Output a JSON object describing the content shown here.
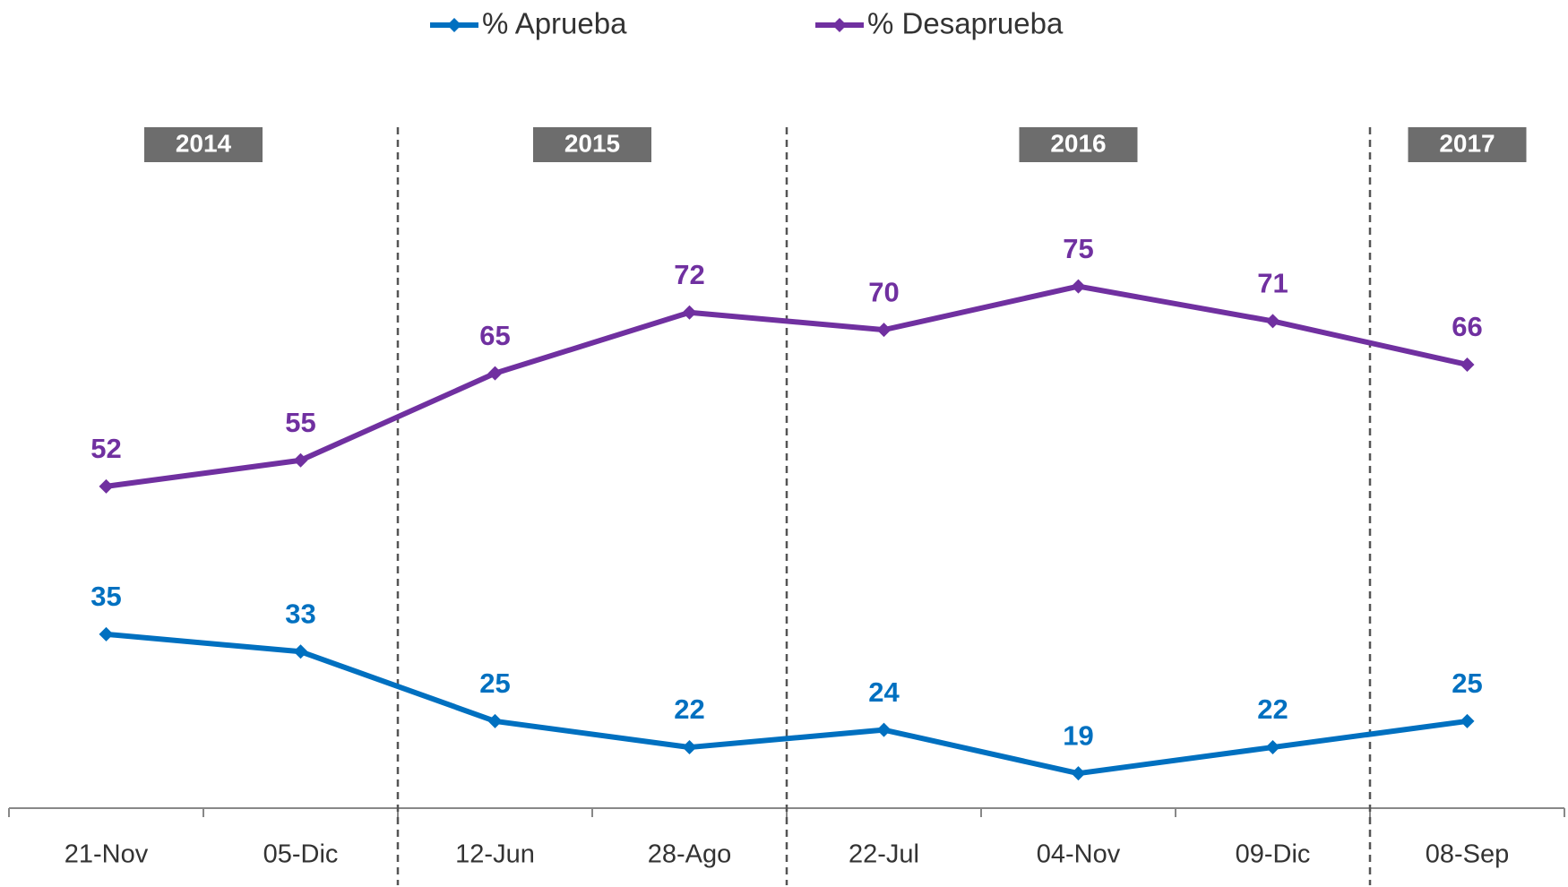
{
  "chart_data": {
    "type": "line",
    "categories": [
      "21-Nov",
      "05-Dic",
      "12-Jun",
      "28-Ago",
      "22-Jul",
      "04-Nov",
      "09-Dic",
      "08-Sep"
    ],
    "series": [
      {
        "name": "% Aprueba",
        "color": "#0070c0",
        "values": [
          35,
          33,
          25,
          22,
          24,
          19,
          22,
          25
        ]
      },
      {
        "name": "% Desaprueba",
        "color": "#7030a0",
        "values": [
          52,
          55,
          65,
          72,
          70,
          75,
          71,
          66
        ]
      }
    ],
    "year_groups": [
      {
        "label": "2014",
        "size": 2
      },
      {
        "label": "2015",
        "size": 2
      },
      {
        "label": "2016",
        "size": 3
      },
      {
        "label": "2017",
        "size": 1
      }
    ],
    "ylim": [
      15,
      90
    ],
    "grid": false,
    "legend": "top"
  }
}
